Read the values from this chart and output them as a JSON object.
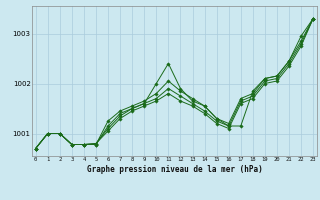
{
  "xlabel": "Graphe pression niveau de la mer (hPa)",
  "x_ticks": [
    0,
    1,
    2,
    3,
    4,
    5,
    6,
    7,
    8,
    9,
    10,
    11,
    12,
    13,
    14,
    15,
    16,
    17,
    18,
    19,
    20,
    21,
    22,
    23
  ],
  "ylim": [
    1000.55,
    1003.55
  ],
  "yticks": [
    1001,
    1002,
    1003
  ],
  "background_color": "#cce8f0",
  "grid_color": "#aaccdd",
  "line_color": "#1a6b1a",
  "figsize": [
    3.2,
    2.0
  ],
  "dpi": 100,
  "series": [
    [
      1000.7,
      1001.0,
      1001.0,
      1000.78,
      1000.78,
      1000.78,
      1001.25,
      1001.45,
      1001.55,
      1001.65,
      1001.8,
      1002.05,
      1001.85,
      1001.7,
      1001.55,
      1001.3,
      1001.15,
      1001.15,
      1001.85,
      1002.1,
      1002.15,
      1002.45,
      1002.95,
      1003.3
    ],
    [
      1000.7,
      1001.0,
      1001.0,
      1000.78,
      1000.78,
      1000.78,
      1001.15,
      1001.4,
      1001.5,
      1001.6,
      1002.0,
      1002.4,
      1001.9,
      1001.65,
      1001.55,
      1001.3,
      1001.2,
      1001.7,
      1001.8,
      1002.1,
      1002.15,
      1002.45,
      1002.85,
      1003.3
    ],
    [
      1000.7,
      1001.0,
      1001.0,
      1000.78,
      1000.78,
      1000.8,
      1001.1,
      1001.35,
      1001.5,
      1001.6,
      1001.7,
      1001.9,
      1001.75,
      1001.6,
      1001.45,
      1001.25,
      1001.15,
      1001.65,
      1001.75,
      1002.05,
      1002.1,
      1002.4,
      1002.8,
      1003.3
    ],
    [
      1000.7,
      1001.0,
      1001.0,
      1000.78,
      1000.78,
      1000.8,
      1001.05,
      1001.3,
      1001.45,
      1001.55,
      1001.65,
      1001.8,
      1001.65,
      1001.55,
      1001.4,
      1001.2,
      1001.1,
      1001.6,
      1001.7,
      1002.0,
      1002.05,
      1002.35,
      1002.75,
      1003.3
    ]
  ]
}
